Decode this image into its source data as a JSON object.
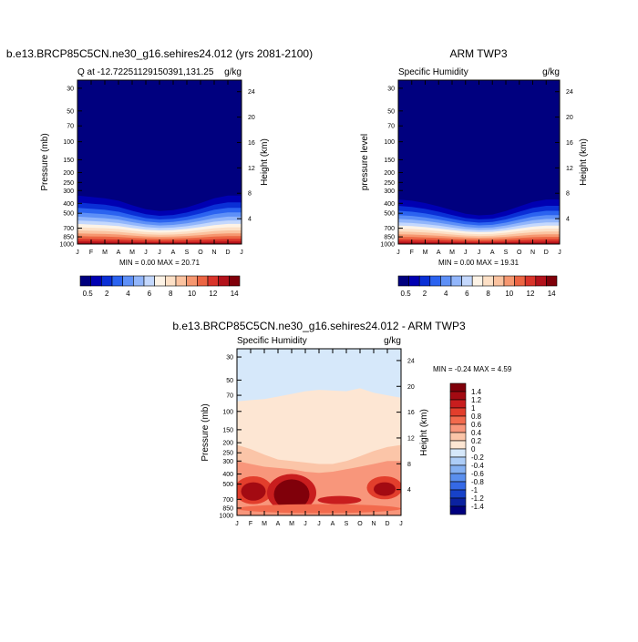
{
  "chart_data": [
    {
      "type": "heatmap",
      "title": "b.e13.BRCP85C5CN.ne30_g16.sehires24.012 (yrs 2081-2100)",
      "subtitle_left": "Q at -12.7225112915039​1,131.25",
      "units": "g/kg",
      "ylabel": "Pressure (mb)",
      "ylabel_right": "Height (km)",
      "x_ticks": [
        "J",
        "F",
        "M",
        "A",
        "M",
        "J",
        "J",
        "A",
        "S",
        "O",
        "N",
        "D",
        "J"
      ],
      "y_ticks": [
        "30",
        "50",
        "70",
        "100",
        "150",
        "200",
        "250",
        "300",
        "400",
        "500",
        "700",
        "850",
        "1000"
      ],
      "height_ticks": [
        "24",
        "20",
        "16",
        "12",
        "8",
        "4"
      ],
      "stats": "MIN =   0.00 MAX =  20.71",
      "colorbar_labels": [
        "0.5",
        "2",
        "4",
        "6",
        "8",
        "10",
        "12",
        "14"
      ],
      "upper_pressure_by_month": [
        240,
        250,
        260,
        280,
        320,
        360,
        380,
        370,
        340,
        300,
        260,
        240,
        240
      ]
    },
    {
      "type": "heatmap",
      "title": "ARM TWP3",
      "subtitle_left": "Specific Humidity",
      "units": "g/kg",
      "ylabel": "pressure level",
      "ylabel_right": "Height (km)",
      "x_ticks": [
        "J",
        "F",
        "M",
        "A",
        "M",
        "J",
        "J",
        "A",
        "S",
        "O",
        "N",
        "D",
        "J"
      ],
      "y_ticks": [
        "30",
        "50",
        "70",
        "100",
        "150",
        "200",
        "250",
        "300",
        "400",
        "500",
        "700",
        "850",
        "1000"
      ],
      "height_ticks": [
        "24",
        "20",
        "16",
        "12",
        "8",
        "4"
      ],
      "stats": "MIN =   0.00 MAX =  19.31",
      "colorbar_labels": [
        "0.5",
        "2",
        "4",
        "6",
        "8",
        "10",
        "12",
        "14"
      ],
      "upper_pressure_by_month": [
        270,
        280,
        300,
        330,
        370,
        410,
        430,
        420,
        380,
        330,
        290,
        270,
        270
      ]
    },
    {
      "type": "heatmap",
      "title": "b.e13.BRCP85C5CN.ne30_g16.sehires24.012 - ARM TWP3",
      "subtitle_left": "Specific Humidity",
      "units": "g/kg",
      "ylabel": "Pressure (mb)",
      "ylabel_right": "Height (km)",
      "x_ticks": [
        "J",
        "F",
        "M",
        "A",
        "M",
        "J",
        "J",
        "A",
        "S",
        "O",
        "N",
        "D",
        "J"
      ],
      "y_ticks": [
        "30",
        "50",
        "70",
        "100",
        "150",
        "200",
        "250",
        "300",
        "400",
        "500",
        "700",
        "850",
        "1000"
      ],
      "height_ticks": [
        "24",
        "20",
        "16",
        "12",
        "8",
        "4"
      ],
      "stats": "MIN =  -0.24 MAX =   4.59",
      "colorbar_labels": [
        "1.4",
        "1.2",
        "1",
        "0.8",
        "0.6",
        "0.4",
        "0.2",
        "0",
        "-0.2",
        "-0.4",
        "-0.6",
        "-0.8",
        "-1",
        "-1.2",
        "-1.4"
      ]
    }
  ],
  "colors": {
    "seq_palette": [
      "#00007f",
      "#0000b2",
      "#0a2fd6",
      "#2b63f0",
      "#5e90f7",
      "#92b6fb",
      "#c4d8fd",
      "#fdf3e6",
      "#fde0c6",
      "#fbc3a0",
      "#f69770",
      "#ec6543",
      "#d9342a",
      "#b3121b",
      "#80000a"
    ],
    "diff_palette": [
      "#80000a",
      "#a30a12",
      "#c81d1e",
      "#e23e2c",
      "#f26a4d",
      "#f8967b",
      "#fbc5a8",
      "#fde6d3",
      "#d6e8fa",
      "#adcdf7",
      "#84b0f2",
      "#5a8fee",
      "#3569e6",
      "#1742c9",
      "#0b22a0",
      "#00007f"
    ]
  }
}
